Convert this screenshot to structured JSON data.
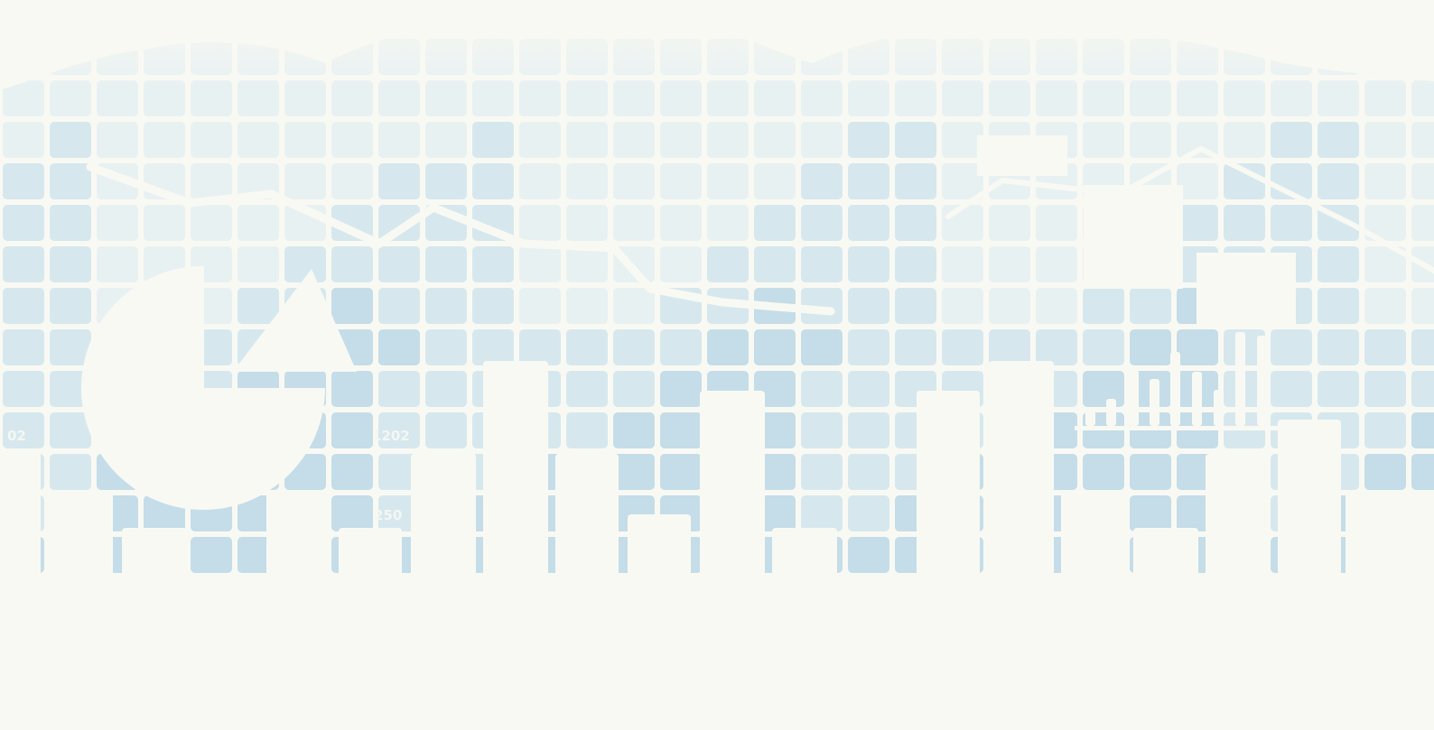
{
  "palette": {
    "background": "#f9f9f3",
    "grid_light": "#e8f1f2",
    "grid_mid": "#d6e8ee",
    "grid_dark": "#c4dde8",
    "silhouette": "#f9f9f3"
  },
  "faint_texts": [
    "02",
    "1202",
    "250"
  ],
  "description_icons": [
    "pie-chart-icon",
    "triangle-icon",
    "bar-chart-icon",
    "mini-bar-chart-icon"
  ]
}
